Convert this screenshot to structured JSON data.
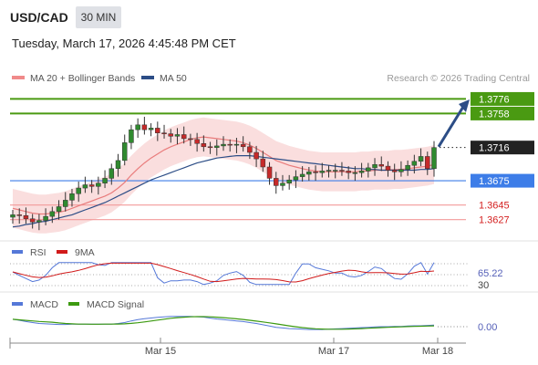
{
  "header": {
    "pair": "USD/CAD",
    "timeframe": "30 MIN",
    "datetime": "Tuesday, March 17, 2026 4:45:48 PM CET"
  },
  "legend": {
    "ma20_label": "MA 20 + Bollinger Bands",
    "ma50_label": "MA 50",
    "credit": "Research © 2026 Trading Central",
    "colors": {
      "ma20": "#e97c7c",
      "ma50": "#2c4d86",
      "band": "#fadada"
    }
  },
  "chart_data": [
    {
      "type": "candlestick",
      "title": "USD/CAD 30 MIN",
      "ylim": [
        1.3612,
        1.379
      ],
      "x_tick_labels": [
        "Mar 15",
        "Mar 17",
        "Mar 18"
      ],
      "levels": [
        {
          "name": "target-2",
          "value": 1.3776,
          "label": "1.3776",
          "color": "#4a9a12",
          "style": "solid"
        },
        {
          "name": "target-1",
          "value": 1.3758,
          "label": "1.3758",
          "color": "#4a9a12",
          "style": "solid"
        },
        {
          "name": "last-price",
          "value": 1.3716,
          "label": "1.3716",
          "color": "#222222",
          "style": "dotted"
        },
        {
          "name": "pivot",
          "value": 1.3675,
          "label": "1.3675",
          "color": "#3d7de8",
          "style": "solid"
        },
        {
          "name": "support-1",
          "value": 1.3645,
          "label": "1.3645",
          "color": "#f29a9a",
          "style": "solid"
        },
        {
          "name": "support-2",
          "value": 1.3627,
          "label": "1.3627",
          "color": "#f29a9a",
          "style": "solid"
        }
      ],
      "projection": {
        "from": 1.3717,
        "to": 1.3772,
        "direction": "up",
        "color": "#2c4d86"
      },
      "close": [
        1.3633,
        1.3632,
        1.3628,
        1.3624,
        1.3626,
        1.3631,
        1.3637,
        1.3643,
        1.3651,
        1.3659,
        1.3666,
        1.367,
        1.3668,
        1.3672,
        1.3678,
        1.369,
        1.37,
        1.3722,
        1.3738,
        1.3744,
        1.3738,
        1.374,
        1.3734,
        1.3733,
        1.373,
        1.3732,
        1.3727,
        1.3726,
        1.3721,
        1.3717,
        1.3716,
        1.3718,
        1.372,
        1.3719,
        1.372,
        1.3717,
        1.371,
        1.3702,
        1.3692,
        1.3678,
        1.3669,
        1.3672,
        1.3676,
        1.368,
        1.3683,
        1.3686,
        1.3685,
        1.3687,
        1.3688,
        1.3688,
        1.3687,
        1.3685,
        1.3685,
        1.3687,
        1.3691,
        1.3695,
        1.3693,
        1.3688,
        1.3686,
        1.3689,
        1.3694,
        1.3699,
        1.3705,
        1.369,
        1.3716
      ],
      "ma20": [
        1.3641,
        1.3639,
        1.3637,
        1.3635,
        1.3634,
        1.3634,
        1.3635,
        1.3636,
        1.3638,
        1.3641,
        1.3644,
        1.3647,
        1.365,
        1.3653,
        1.3656,
        1.366,
        1.3666,
        1.3673,
        1.3682,
        1.369,
        1.3697,
        1.3703,
        1.3708,
        1.3713,
        1.3717,
        1.372,
        1.3723,
        1.3726,
        1.3728,
        1.3729,
        1.3728,
        1.3727,
        1.3726,
        1.3725,
        1.3724,
        1.3722,
        1.3719,
        1.3715,
        1.371,
        1.3705,
        1.37,
        1.3697,
        1.3694,
        1.3692,
        1.369,
        1.3688,
        1.3687,
        1.3686,
        1.3686,
        1.3686,
        1.3686,
        1.3686,
        1.3686,
        1.3687,
        1.3687,
        1.3688,
        1.3688,
        1.3688,
        1.3689,
        1.3689,
        1.369,
        1.3691,
        1.3692,
        1.3693,
        1.3695
      ],
      "ma50": [
        1.3618,
        1.3619,
        1.3621,
        1.3622,
        1.3624,
        1.3625,
        1.3627,
        1.3629,
        1.3631,
        1.3633,
        1.3636,
        1.3639,
        1.3642,
        1.3645,
        1.3648,
        1.3652,
        1.3656,
        1.366,
        1.3664,
        1.3668,
        1.3672,
        1.3676,
        1.3679,
        1.3682,
        1.3685,
        1.3688,
        1.3691,
        1.3694,
        1.3697,
        1.3699,
        1.3701,
        1.3703,
        1.3704,
        1.3705,
        1.3706,
        1.3706,
        1.3706,
        1.3705,
        1.3704,
        1.3703,
        1.3702,
        1.3701,
        1.37,
        1.3699,
        1.3698,
        1.3697,
        1.3696,
        1.3695,
        1.3694,
        1.3693,
        1.3692,
        1.3691,
        1.369,
        1.369,
        1.3689,
        1.3689,
        1.3688,
        1.3688,
        1.3688,
        1.3688,
        1.3688,
        1.3688,
        1.3689,
        1.3689,
        1.369
      ],
      "bollinger_width": 0.0024
    },
    {
      "type": "line",
      "panel": "RSI",
      "series": [
        {
          "name": "RSI",
          "color": "#5578d8"
        },
        {
          "name": "9MA",
          "color": "#d11a1a"
        }
      ],
      "levels": [
        70,
        50,
        30
      ],
      "last_value": "65.22",
      "level_label": "30"
    },
    {
      "type": "line",
      "panel": "MACD",
      "series": [
        {
          "name": "MACD",
          "color": "#5578d8"
        },
        {
          "name": "MACD Signal",
          "color": "#3c9a10"
        }
      ],
      "last_value": "0.00"
    }
  ],
  "arrow": {
    "color": "#2c4d86"
  }
}
